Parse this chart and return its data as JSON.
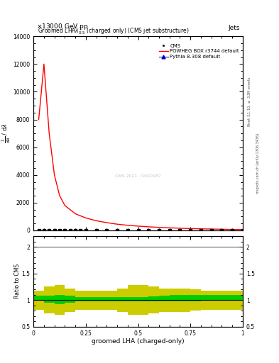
{
  "title_top": "13000 GeV pp",
  "title_right": "Jets",
  "plot_title": "Groomed LHA$\\lambda^{1}_{0.5}$ (charged only) (CMS jet substructure)",
  "xlabel": "groomed LHA (charged-only)",
  "ylabel_main": "$\\frac{1}{\\mathrm{d}N}$ / $\\mathrm{d}\\lambda$",
  "ylabel_ratio": "Ratio to CMS",
  "right_label_top": "Rivet 3.1.10, $\\geq$ 3.3M events",
  "right_label_bot": "mcplots.cern.ch [arXiv:1306.3436]",
  "watermark": "CMS 2021  I1920187",
  "cms_x": [
    0.025,
    0.05,
    0.075,
    0.1,
    0.125,
    0.15,
    0.175,
    0.2,
    0.225,
    0.25,
    0.3,
    0.35,
    0.4,
    0.45,
    0.5,
    0.55,
    0.6,
    0.65,
    0.7,
    0.75,
    0.8,
    0.85,
    0.9,
    0.95,
    1.0
  ],
  "cms_y": [
    0,
    0,
    0,
    0,
    0,
    0,
    0,
    0,
    0,
    0,
    0,
    0,
    0,
    0,
    0,
    0,
    0,
    0,
    0,
    0,
    0,
    0,
    0,
    0,
    0
  ],
  "powheg_x": [
    0.025,
    0.05,
    0.075,
    0.1,
    0.125,
    0.15,
    0.2,
    0.25,
    0.3,
    0.35,
    0.4,
    0.45,
    0.5,
    0.55,
    0.6,
    0.65,
    0.7,
    0.75,
    0.8,
    0.85,
    0.9,
    0.95,
    1.0
  ],
  "powheg_y": [
    8000,
    12000,
    7000,
    4000,
    2500,
    1800,
    1200,
    900,
    700,
    560,
    450,
    370,
    310,
    260,
    220,
    185,
    158,
    135,
    115,
    98,
    84,
    72,
    62
  ],
  "pythia_x": [
    0.025,
    0.05,
    0.075,
    0.1,
    0.125,
    0.15,
    0.175,
    0.2,
    0.225,
    0.25,
    0.3,
    0.35,
    0.4,
    0.45,
    0.5,
    0.55,
    0.6,
    0.65,
    0.7,
    0.75,
    0.8,
    0.85,
    0.9,
    0.95,
    1.0
  ],
  "pythia_y": [
    0,
    0,
    0,
    0,
    0,
    0,
    0,
    0,
    0,
    0,
    0,
    0,
    0,
    0,
    0,
    0,
    0,
    0,
    0,
    0,
    0,
    0,
    0,
    0,
    0
  ],
  "ratio_edges": [
    0.0,
    0.05,
    0.1,
    0.15,
    0.2,
    0.25,
    0.3,
    0.35,
    0.4,
    0.45,
    0.5,
    0.55,
    0.6,
    0.65,
    0.7,
    0.75,
    0.8,
    0.85,
    0.9,
    0.95,
    1.0
  ],
  "ratio_green_lo": [
    1.0,
    0.95,
    0.92,
    0.95,
    0.98,
    0.98,
    0.98,
    0.98,
    0.98,
    0.98,
    0.98,
    0.98,
    0.98,
    0.98,
    0.98,
    0.98,
    0.99,
    0.99,
    0.99,
    1.0
  ],
  "ratio_green_hi": [
    1.08,
    1.08,
    1.1,
    1.08,
    1.05,
    1.05,
    1.05,
    1.05,
    1.05,
    1.05,
    1.06,
    1.07,
    1.08,
    1.09,
    1.1,
    1.1,
    1.1,
    1.1,
    1.1,
    1.1
  ],
  "ratio_yellow_lo": [
    0.82,
    0.75,
    0.72,
    0.78,
    0.82,
    0.82,
    0.82,
    0.82,
    0.78,
    0.72,
    0.72,
    0.75,
    0.78,
    0.78,
    0.78,
    0.8,
    0.82,
    0.82,
    0.82,
    0.82
  ],
  "ratio_yellow_hi": [
    1.18,
    1.25,
    1.28,
    1.22,
    1.18,
    1.18,
    1.18,
    1.18,
    1.22,
    1.28,
    1.28,
    1.25,
    1.22,
    1.22,
    1.22,
    1.2,
    1.18,
    1.18,
    1.18,
    1.18
  ],
  "yticks_main": [
    0,
    2000,
    4000,
    6000,
    8000,
    10000,
    12000,
    14000
  ],
  "ytick_labels_main": [
    "0",
    "2000",
    "4000",
    "6000",
    "8000",
    "10000",
    "12000",
    "14000"
  ],
  "ylim_main": [
    0,
    14000
  ],
  "ylim_ratio": [
    0.5,
    2.2
  ],
  "xlim": [
    0,
    1.0
  ],
  "xticks": [
    0,
    0.25,
    0.5,
    0.75,
    1.0
  ],
  "xtick_labels": [
    "0",
    "0.25",
    "0.5",
    "0.75",
    "1"
  ],
  "cms_color": "#000000",
  "powheg_color": "#ff0000",
  "pythia_color": "#0000cc",
  "green_color": "#00cc00",
  "yellow_color": "#cccc00",
  "background_color": "#ffffff"
}
